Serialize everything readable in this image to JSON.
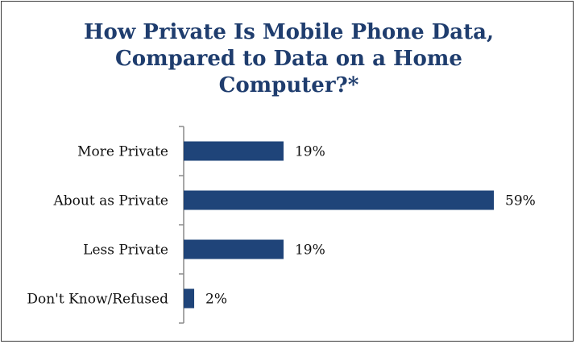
{
  "chart_data": {
    "type": "bar",
    "orientation": "horizontal",
    "title": "How Private Is Mobile Phone Data, Compared to Data on a Home Computer?*",
    "title_lines": [
      "How Private Is Mobile Phone Data,",
      "Compared to Data on a Home",
      "Computer?*"
    ],
    "categories": [
      "More Private",
      "About as Private",
      "Less Private",
      "Don't Know/Refused"
    ],
    "values": [
      19,
      59,
      19,
      2
    ],
    "value_labels": [
      "19%",
      "59%",
      "19%",
      "2%"
    ],
    "xlim": [
      0,
      59
    ],
    "grid": false,
    "bar_color": "#1f4479",
    "title_color": "#1f3d6e"
  }
}
